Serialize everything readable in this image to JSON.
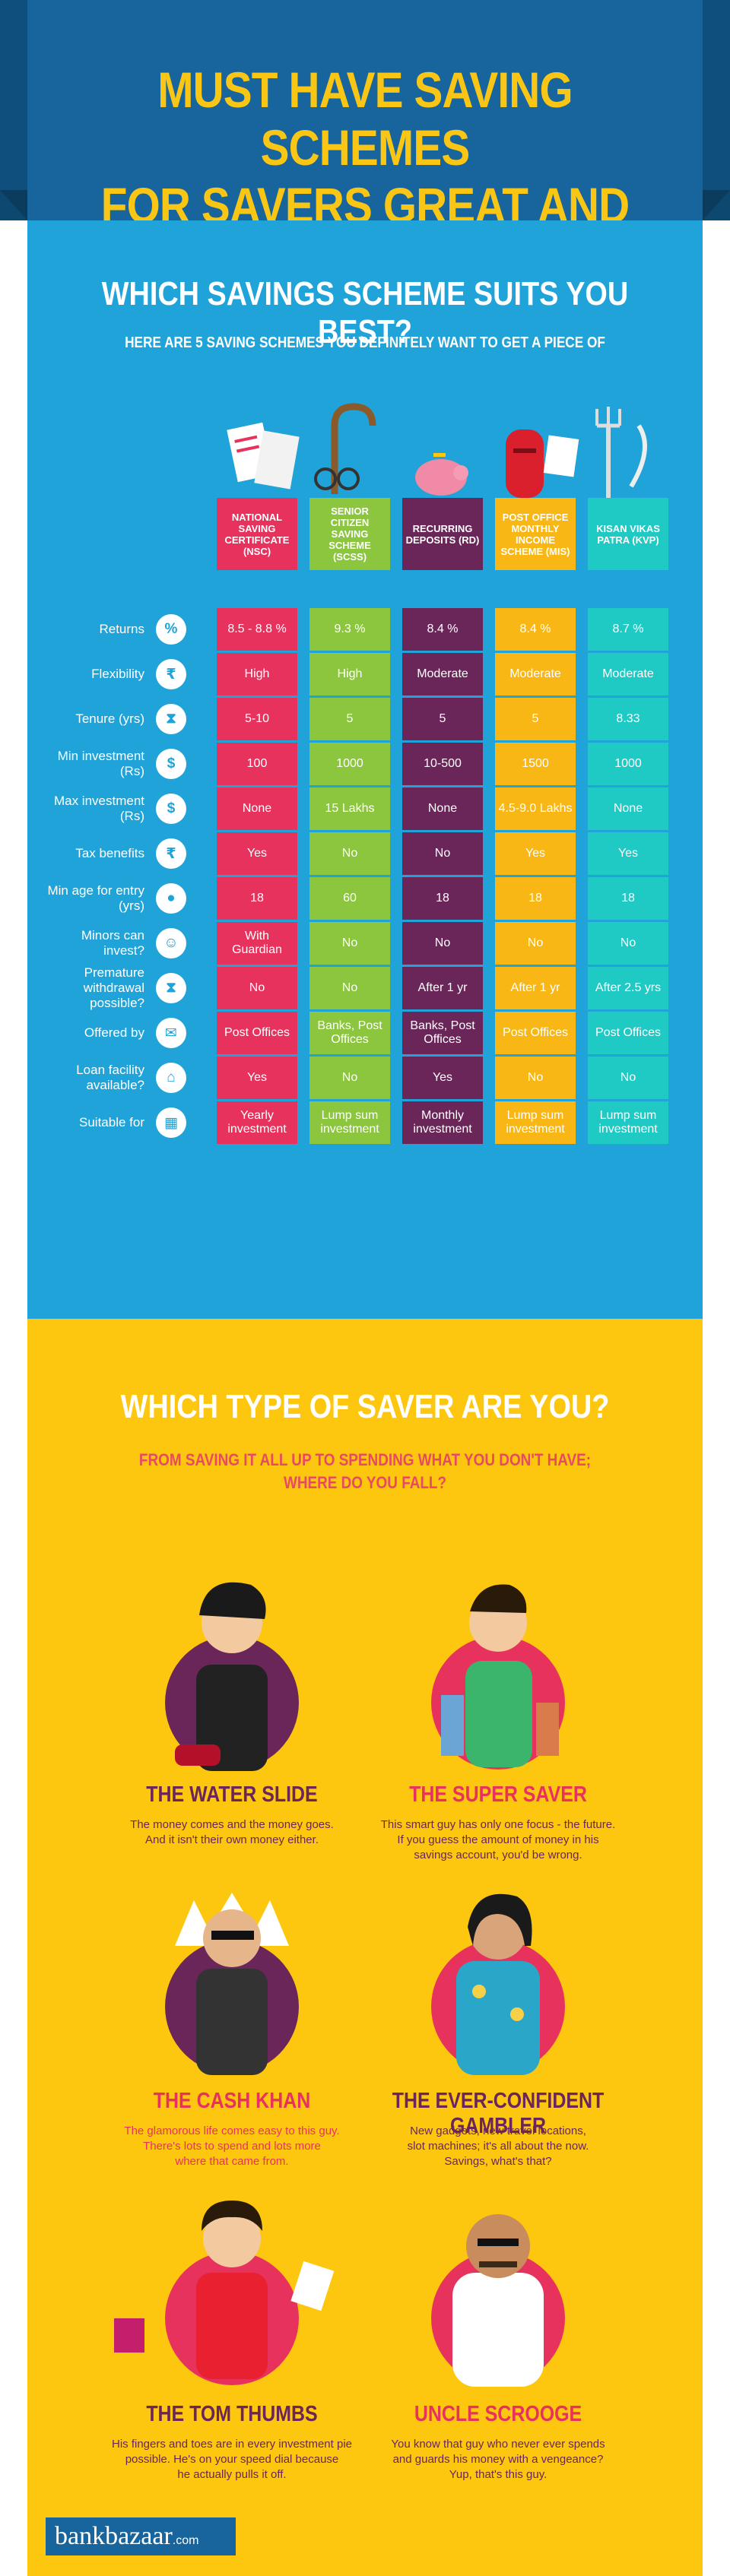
{
  "header": {
    "line1": "MUST HAVE SAVING SCHEMES",
    "line2": "FOR SAVERS GREAT AND SMALL"
  },
  "schemes_section": {
    "title": "WHICH SAVINGS SCHEME SUITS YOU BEST?",
    "subtitle": "HERE ARE 5 SAVING SCHEMES YOU DEFINITELY WANT TO GET A PIECE OF"
  },
  "schemes": [
    {
      "name": "NATIONAL SAVING CERTIFICATE (NSC)",
      "color": "#e8325e"
    },
    {
      "name": "SENIOR CITIZEN SAVING SCHEME (SCSS)",
      "color": "#8bc63e"
    },
    {
      "name": "RECURRING DEPOSITS (RD)",
      "color": "#6a2559"
    },
    {
      "name": "POST OFFICE MONTHLY INCOME SCHEME (MIS)",
      "color": "#f8b715"
    },
    {
      "name": "KISAN VIKAS PATRA (KVP)",
      "color": "#1fc9c4"
    }
  ],
  "rows": [
    {
      "label": "Returns",
      "icon": "%",
      "icon_name": "percent-icon",
      "values": [
        "8.5 - 8.8 %",
        "9.3 %",
        "8.4 %",
        "8.4 %",
        "8.7 %"
      ]
    },
    {
      "label": "Flexibility",
      "icon": "₹",
      "icon_name": "rupee-icon",
      "values": [
        "High",
        "High",
        "Moderate",
        "Moderate",
        "Moderate"
      ]
    },
    {
      "label": "Tenure (yrs)",
      "icon": "⧗",
      "icon_name": "hourglass-icon",
      "values": [
        "5-10",
        "5",
        "5",
        "5",
        "8.33"
      ]
    },
    {
      "label": "Min investment (Rs)",
      "icon": "$",
      "icon_name": "money-bag-icon",
      "values": [
        "100",
        "1000",
        "10-500",
        "1500",
        "1000"
      ]
    },
    {
      "label": "Max investment (Rs)",
      "icon": "$",
      "icon_name": "money-bag-icon",
      "values": [
        "None",
        "15 Lakhs",
        "None",
        "4.5-9.0 Lakhs",
        "None"
      ]
    },
    {
      "label": "Tax benefits",
      "icon": "₹",
      "icon_name": "rupee-icon",
      "values": [
        "Yes",
        "No",
        "No",
        "Yes",
        "Yes"
      ]
    },
    {
      "label": "Min age for entry (yrs)",
      "icon": "●",
      "icon_name": "person-icon",
      "values": [
        "18",
        "60",
        "18",
        "18",
        "18"
      ]
    },
    {
      "label": "Minors can invest?",
      "icon": "☺",
      "icon_name": "child-icon",
      "values": [
        "With Guardian",
        "No",
        "No",
        "No",
        "No"
      ]
    },
    {
      "label": "Premature withdrawal possible?",
      "icon": "⧗",
      "icon_name": "hourglass-icon",
      "values": [
        "No",
        "No",
        "After 1 yr",
        "After 1 yr",
        "After 2.5 yrs"
      ]
    },
    {
      "label": "Offered by",
      "icon": "✉",
      "icon_name": "post-office-icon",
      "values": [
        "Post Offices",
        "Banks, Post Offices",
        "Banks, Post Offices",
        "Post Offices",
        "Post Offices"
      ]
    },
    {
      "label": "Loan facility available?",
      "icon": "⌂",
      "icon_name": "bank-icon",
      "values": [
        "Yes",
        "No",
        "Yes",
        "No",
        "No"
      ]
    },
    {
      "label": "Suitable for",
      "icon": "▦",
      "icon_name": "calendar-icon",
      "values": [
        "Yearly investment",
        "Lump sum investment",
        "Monthly investment",
        "Lump sum investment",
        "Lump sum investment"
      ]
    }
  ],
  "savers_section": {
    "title": "WHICH TYPE OF SAVER ARE YOU?",
    "subtitle_line1": "FROM SAVING IT ALL UP TO SPENDING WHAT YOU DON'T HAVE;",
    "subtitle_line2": "WHERE DO YOU FALL?"
  },
  "savers": [
    {
      "name": "THE WATER SLIDE",
      "name_color": "#6a2559",
      "desc_line1": "The money comes and the money goes.",
      "desc_line2": "And it isn't their own money either.",
      "desc_line3": ""
    },
    {
      "name": "THE SUPER SAVER",
      "name_color": "#e8325e",
      "desc_line1": "This smart guy has only one focus - the future.",
      "desc_line2": "If you guess the amount of money in his",
      "desc_line3": "savings account, you'd be wrong."
    },
    {
      "name": "THE CASH KHAN",
      "name_color": "#e8325e",
      "desc_line1": "The glamorous life comes easy to this guy.",
      "desc_line2": "There's lots to spend and lots more",
      "desc_line3": "where that came from."
    },
    {
      "name": "THE EVER-CONFIDENT GAMBLER",
      "name_color": "#6a2559",
      "desc_line1": "New gadgets, new travel locations,",
      "desc_line2": "slot machines; it's all about the now.",
      "desc_line3": "Savings, what's that?"
    },
    {
      "name": "THE TOM THUMBS",
      "name_color": "#6a2559",
      "desc_line1": "His fingers and toes are in every investment pie",
      "desc_line2": "possible. He's on your speed dial because",
      "desc_line3": "he actually pulls it off."
    },
    {
      "name": "UNCLE SCROOGE",
      "name_color": "#e8325e",
      "desc_line1": "You know that guy who never ever spends",
      "desc_line2": "and guards his money with a vengeance?",
      "desc_line3": "Yup, that's this guy."
    }
  ],
  "footer": {
    "brand": "bankbazaar",
    "tld": ".com"
  },
  "colors": {
    "navy": "#17659c",
    "blue": "#1fa3d8",
    "yellow": "#fdc70f",
    "gold": "#f9c616"
  }
}
